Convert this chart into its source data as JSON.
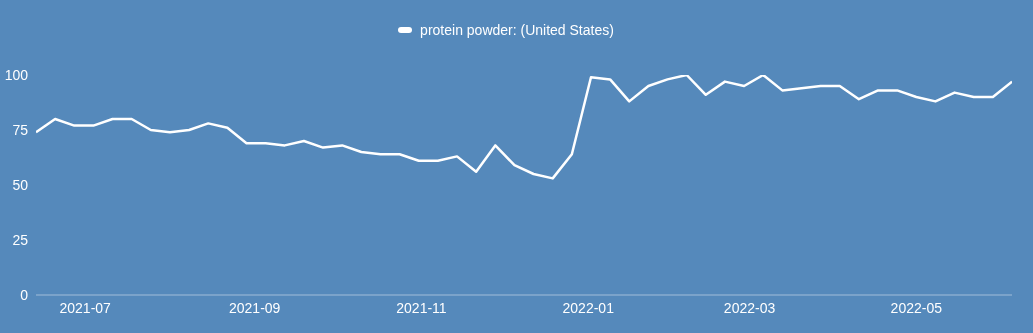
{
  "chart_data": {
    "type": "line",
    "x": [
      "2021-06-13",
      "2021-06-20",
      "2021-06-27",
      "2021-07-04",
      "2021-07-11",
      "2021-07-18",
      "2021-07-25",
      "2021-08-01",
      "2021-08-08",
      "2021-08-15",
      "2021-08-22",
      "2021-08-29",
      "2021-09-05",
      "2021-09-12",
      "2021-09-19",
      "2021-09-26",
      "2021-10-03",
      "2021-10-10",
      "2021-10-17",
      "2021-10-24",
      "2021-10-31",
      "2021-11-07",
      "2021-11-14",
      "2021-11-21",
      "2021-11-28",
      "2021-12-05",
      "2021-12-12",
      "2021-12-19",
      "2021-12-26",
      "2022-01-02",
      "2022-01-09",
      "2022-01-16",
      "2022-01-23",
      "2022-01-30",
      "2022-02-06",
      "2022-02-13",
      "2022-02-20",
      "2022-02-27",
      "2022-03-06",
      "2022-03-13",
      "2022-03-20",
      "2022-03-27",
      "2022-04-03",
      "2022-04-10",
      "2022-04-17",
      "2022-04-24",
      "2022-05-01",
      "2022-05-08",
      "2022-05-15",
      "2022-05-22",
      "2022-05-29",
      "2022-06-05"
    ],
    "series": [
      {
        "name": "protein powder: (United States)",
        "color": "#ffffff",
        "values": [
          74,
          80,
          77,
          77,
          80,
          80,
          75,
          74,
          75,
          78,
          76,
          69,
          69,
          68,
          70,
          67,
          68,
          65,
          64,
          64,
          61,
          61,
          63,
          56,
          68,
          59,
          55,
          53,
          64,
          99,
          98,
          88,
          95,
          98,
          100,
          91,
          97,
          95,
          100,
          93,
          94,
          95,
          95,
          89,
          93,
          93,
          90,
          88,
          92,
          90,
          90,
          97
        ]
      }
    ],
    "xticks": [
      {
        "value": "2021-07-01",
        "label": "2021-07"
      },
      {
        "value": "2021-09-01",
        "label": "2021-09"
      },
      {
        "value": "2021-11-01",
        "label": "2021-11"
      },
      {
        "value": "2022-01-01",
        "label": "2022-01"
      },
      {
        "value": "2022-03-01",
        "label": "2022-03"
      },
      {
        "value": "2022-05-01",
        "label": "2022-05"
      }
    ],
    "xlim": [
      "2021-06-13",
      "2022-06-05"
    ],
    "ylim": [
      0,
      100
    ],
    "yticks": [
      0,
      25,
      50,
      75,
      100
    ],
    "legend": "top",
    "marker": "none",
    "line_style": "solid",
    "grid": false
  }
}
